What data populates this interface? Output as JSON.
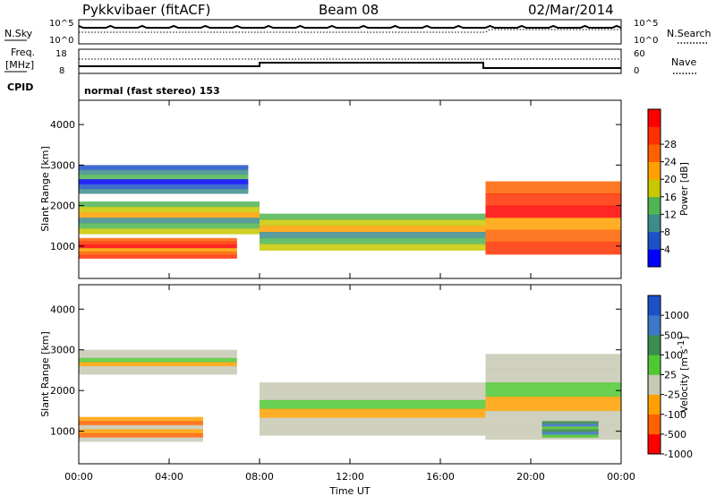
{
  "header": {
    "station": "Pykkvibaer (fitACF)",
    "beam": "Beam 08",
    "date": "02/Mar/2014"
  },
  "status_panels": {
    "nsky_label": "N.Sky",
    "nsky_tick_top": "10^5",
    "nsky_tick_bottom": "10^0",
    "nsearch_label": "N.Search",
    "freq_label_line1": "Freq.",
    "freq_label_line2": "[MHz]",
    "freq_tick_top": "18",
    "freq_tick_bottom": "8",
    "nave_label": "Nave",
    "nave_tick_top": "60",
    "nave_tick_bottom": "0",
    "cpid_label": "CPID",
    "cpid_text": "normal (fast stereo) 153"
  },
  "chart_data": [
    {
      "type": "heatmap",
      "title": "",
      "ylabel": "Slant Range [km]",
      "xlabel": "",
      "ylim": [
        200,
        4600
      ],
      "yticks": [
        "1000",
        "2000",
        "3000",
        "4000"
      ],
      "colorbar": {
        "label": "Power [dB]",
        "ticks": [
          "4",
          "8",
          "12",
          "16",
          "20",
          "24",
          "28"
        ],
        "colors": [
          "#0000ff",
          "#1e50c8",
          "#3c8c8c",
          "#50b450",
          "#c8c800",
          "#ffa000",
          "#ff6000",
          "#ff3000",
          "#ff0000"
        ]
      },
      "bands": [
        {
          "time_start": 0.0,
          "time_end": 7.0,
          "range_min": 700,
          "range_max": 1200,
          "level": "high"
        },
        {
          "time_start": 0.0,
          "time_end": 8.0,
          "range_min": 1300,
          "range_max": 2100,
          "level": "mid"
        },
        {
          "time_start": 0.0,
          "time_end": 7.5,
          "range_min": 2300,
          "range_max": 3000,
          "level": "low"
        },
        {
          "time_start": 8.0,
          "time_end": 18.0,
          "range_min": 900,
          "range_max": 1800,
          "level": "mid"
        },
        {
          "time_start": 18.0,
          "time_end": 24.0,
          "range_min": 800,
          "range_max": 2600,
          "level": "high"
        }
      ]
    },
    {
      "type": "heatmap",
      "title": "",
      "ylabel": "Slant Range [km]",
      "xlabel": "Time UT",
      "ylim": [
        200,
        4600
      ],
      "yticks": [
        "1000",
        "2000",
        "3000",
        "4000"
      ],
      "xticks": [
        "00:00",
        "04:00",
        "08:00",
        "12:00",
        "16:00",
        "20:00",
        "00:00"
      ],
      "colorbar": {
        "label": "Velocity [m s",
        "label_superscript": "-1",
        "label_suffix": "]",
        "ticks": [
          "1000",
          "500",
          "100",
          "25",
          "-25",
          "-100",
          "-500",
          "-1000"
        ],
        "colors": [
          "#1e50c8",
          "#3c78c8",
          "#3c8c50",
          "#50c832",
          "#c8c8b4",
          "#ffa000",
          "#ff6000",
          "#ff0000"
        ]
      },
      "bands": [
        {
          "time_start": 0.0,
          "time_end": 5.5,
          "range_min": 750,
          "range_max": 1350,
          "level": "away"
        },
        {
          "time_start": 0.0,
          "time_end": 7.0,
          "range_min": 2400,
          "range_max": 3000,
          "level": "zero"
        },
        {
          "time_start": 8.0,
          "time_end": 18.0,
          "range_min": 900,
          "range_max": 2200,
          "level": "zero"
        },
        {
          "time_start": 18.0,
          "time_end": 24.0,
          "range_min": 800,
          "range_max": 2900,
          "level": "zero"
        },
        {
          "time_start": 20.5,
          "time_end": 23.0,
          "range_min": 850,
          "range_max": 1250,
          "level": "toward"
        }
      ]
    }
  ]
}
